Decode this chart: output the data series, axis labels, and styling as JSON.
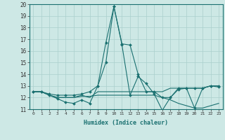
{
  "xlabel": "Humidex (Indice chaleur)",
  "ylabel": "",
  "xlim": [
    -0.5,
    23.5
  ],
  "ylim": [
    11,
    20
  ],
  "yticks": [
    11,
    12,
    13,
    14,
    15,
    16,
    17,
    18,
    19,
    20
  ],
  "xticks": [
    0,
    1,
    2,
    3,
    4,
    5,
    6,
    7,
    8,
    9,
    10,
    11,
    12,
    13,
    14,
    15,
    16,
    17,
    18,
    19,
    20,
    21,
    22,
    23
  ],
  "bg_color": "#cde8e5",
  "grid_color": "#aacfcc",
  "line_color": "#1a7070",
  "lines_with_markers": [
    0,
    3
  ],
  "lines": [
    [
      12.5,
      12.5,
      12.2,
      11.9,
      11.6,
      11.5,
      11.8,
      11.5,
      13.0,
      15.0,
      19.8,
      16.5,
      12.2,
      13.8,
      13.2,
      12.3,
      10.9,
      12.0,
      12.7,
      12.8,
      11.1,
      12.8,
      13.0,
      12.9
    ],
    [
      12.5,
      12.5,
      12.2,
      12.0,
      12.0,
      12.0,
      12.2,
      12.0,
      12.5,
      12.5,
      12.5,
      12.5,
      12.5,
      12.5,
      12.5,
      12.5,
      12.5,
      12.8,
      12.8,
      12.8,
      12.8,
      12.8,
      13.0,
      13.0
    ],
    [
      12.5,
      12.5,
      12.2,
      12.0,
      12.0,
      12.0,
      12.1,
      12.1,
      12.2,
      12.2,
      12.2,
      12.2,
      12.2,
      12.2,
      12.2,
      12.2,
      12.0,
      11.8,
      11.5,
      11.3,
      11.1,
      11.1,
      11.3,
      11.5
    ],
    [
      12.5,
      12.5,
      12.3,
      12.2,
      12.2,
      12.2,
      12.3,
      12.5,
      13.0,
      16.7,
      19.8,
      16.6,
      16.5,
      14.0,
      12.5,
      12.5,
      12.0,
      12.0,
      12.8,
      12.8,
      12.8,
      12.8,
      13.0,
      13.0
    ]
  ]
}
